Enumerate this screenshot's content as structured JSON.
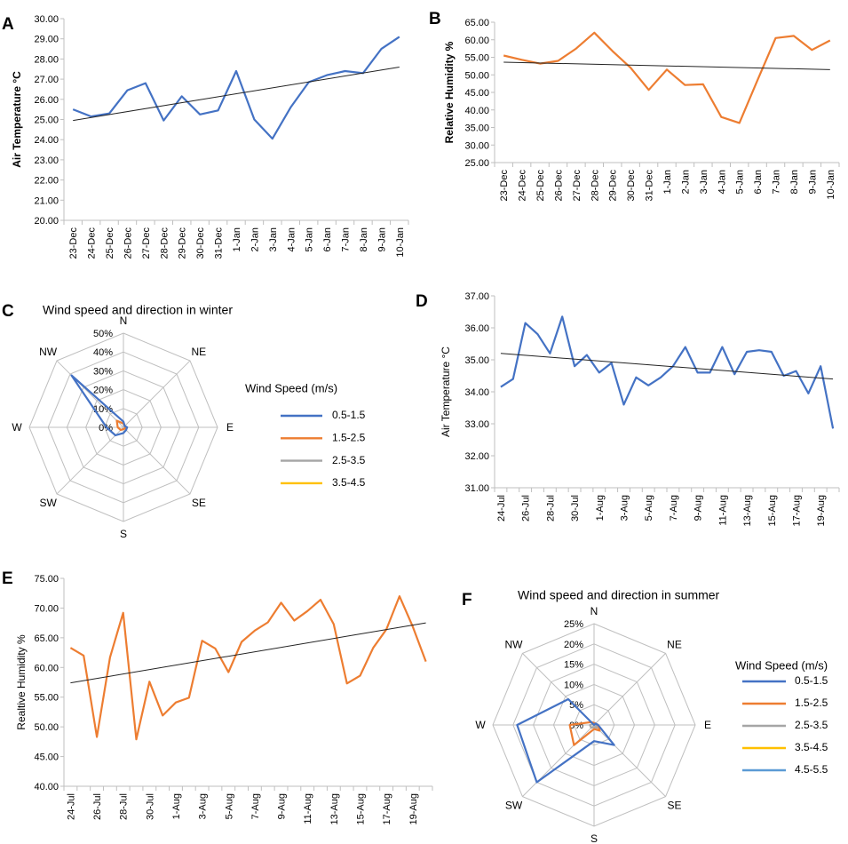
{
  "colors": {
    "blue": "#4472C4",
    "orange": "#ED7D31",
    "gray": "#A5A5A5",
    "yellow": "#FFC000",
    "lightblue": "#5B9BD5",
    "trend": "#222222",
    "grid": "#bfbfbf",
    "axis": "#bfbfbf"
  },
  "chart_data": [
    {
      "id": "A",
      "panel_label": "A",
      "type": "line",
      "ylabel": "Air Temperature °C",
      "ylim": [
        20,
        30
      ],
      "ytick_step": 1,
      "ytick_decimals": 2,
      "categories": [
        "23-Dec",
        "24-Dec",
        "25-Dec",
        "26-Dec",
        "27-Dec",
        "28-Dec",
        "29-Dec",
        "30-Dec",
        "31-Dec",
        "1-Jan",
        "2-Jan",
        "3-Jan",
        "4-Jan",
        "5-Jan",
        "6-Jan",
        "7-Jan",
        "8-Jan",
        "9-Jan",
        "10-Jan"
      ],
      "label_every": 1,
      "series": [
        {
          "name": "Air Temperature",
          "color": "blue",
          "values": [
            25.5,
            25.15,
            25.3,
            26.45,
            26.8,
            24.95,
            26.15,
            25.25,
            25.45,
            27.4,
            25.0,
            24.05,
            25.6,
            26.85,
            27.2,
            27.4,
            27.3,
            28.5,
            29.1
          ]
        }
      ],
      "trend": [
        24.95,
        27.6
      ]
    },
    {
      "id": "B",
      "panel_label": "B",
      "type": "line",
      "ylabel": "Relative Humidity %",
      "ylim": [
        25,
        65
      ],
      "ytick_step": 5,
      "ytick_decimals": 2,
      "categories": [
        "23-Dec",
        "24-Dec",
        "25-Dec",
        "26-Dec",
        "27-Dec",
        "28-Dec",
        "29-Dec",
        "30-Dec",
        "31-Dec",
        "1-Jan",
        "2-Jan",
        "3-Jan",
        "4-Jan",
        "5-Jan",
        "6-Jan",
        "7-Jan",
        "8-Jan",
        "9-Jan",
        "10-Jan"
      ],
      "label_every": 1,
      "series": [
        {
          "name": "Relative Humidity",
          "color": "orange",
          "values": [
            55.5,
            54.3,
            53.2,
            54.0,
            57.5,
            62.0,
            56.8,
            52.0,
            45.7,
            51.5,
            47.1,
            47.3,
            38.0,
            36.3,
            48.5,
            60.5,
            61.1,
            57.1,
            59.8
          ]
        }
      ],
      "trend": [
        53.6,
        51.5
      ]
    },
    {
      "id": "C",
      "panel_label": "C",
      "type": "radar",
      "title": "Wind speed and direction in winter",
      "directions": [
        "N",
        "NE",
        "E",
        "SE",
        "S",
        "SW",
        "W",
        "NW"
      ],
      "rmax": 50,
      "rstep": 10,
      "legend_title": "Wind Speed (m/s)",
      "series": [
        {
          "name": "0.5-1.5",
          "color": "blue",
          "values": [
            3,
            1,
            2,
            2,
            3,
            6,
            9,
            39
          ]
        },
        {
          "name": "1.5-2.5",
          "color": "orange",
          "values": [
            2,
            1,
            1,
            1,
            1,
            2,
            3,
            5
          ]
        },
        {
          "name": "2.5-3.5",
          "color": "gray",
          "values": [
            0,
            0,
            0,
            0,
            0,
            0,
            0,
            0
          ]
        },
        {
          "name": "3.5-4.5",
          "color": "yellow",
          "values": [
            0,
            0,
            0,
            0,
            0,
            0,
            0,
            0
          ]
        }
      ]
    },
    {
      "id": "D",
      "panel_label": "D",
      "type": "line",
      "ylabel": "Air Temperature °C",
      "ylim": [
        31,
        37
      ],
      "ytick_step": 1,
      "ytick_decimals": 2,
      "categories": [
        "24-Jul",
        "25-Jul",
        "26-Jul",
        "27-Jul",
        "28-Jul",
        "29-Jul",
        "30-Jul",
        "31-Jul",
        "1-Aug",
        "2-Aug",
        "3-Aug",
        "4-Aug",
        "5-Aug",
        "6-Aug",
        "7-Aug",
        "8-Aug",
        "9-Aug",
        "10-Aug",
        "11-Aug",
        "12-Aug",
        "13-Aug",
        "14-Aug",
        "15-Aug",
        "16-Aug",
        "17-Aug",
        "18-Aug",
        "19-Aug",
        "20-Aug"
      ],
      "label_every": 2,
      "series": [
        {
          "name": "Air Temperature",
          "color": "blue",
          "values": [
            34.15,
            34.4,
            36.15,
            35.8,
            35.2,
            36.35,
            34.8,
            35.15,
            34.6,
            34.9,
            33.6,
            34.45,
            34.2,
            34.45,
            34.8,
            35.4,
            34.6,
            34.6,
            35.4,
            34.55,
            35.25,
            35.3,
            35.25,
            34.5,
            34.65,
            33.95,
            34.8,
            32.85
          ]
        }
      ],
      "trend": [
        35.2,
        34.4
      ]
    },
    {
      "id": "E",
      "panel_label": "E",
      "type": "line",
      "ylabel": "Realtive Humidity %",
      "ylim": [
        40,
        75
      ],
      "ytick_step": 5,
      "ytick_decimals": 2,
      "categories": [
        "24-Jul",
        "25-Jul",
        "26-Jul",
        "27-Jul",
        "28-Jul",
        "29-Jul",
        "30-Jul",
        "31-Jul",
        "1-Aug",
        "2-Aug",
        "3-Aug",
        "4-Aug",
        "5-Aug",
        "6-Aug",
        "7-Aug",
        "8-Aug",
        "9-Aug",
        "10-Aug",
        "11-Aug",
        "12-Aug",
        "13-Aug",
        "14-Aug",
        "15-Aug",
        "16-Aug",
        "17-Aug",
        "18-Aug",
        "19-Aug",
        "20-Aug"
      ],
      "label_every": 2,
      "series": [
        {
          "name": "Relative Humidity",
          "color": "orange",
          "values": [
            63.3,
            62.0,
            48.3,
            61.7,
            69.2,
            47.9,
            57.6,
            51.9,
            54.1,
            54.9,
            64.5,
            63.2,
            59.2,
            64.3,
            66.2,
            67.6,
            70.9,
            67.9,
            69.5,
            71.4,
            67.3,
            57.3,
            58.6,
            63.3,
            66.4,
            72.0,
            66.9,
            61.0
          ]
        }
      ],
      "trend": [
        57.4,
        67.5
      ]
    },
    {
      "id": "F",
      "panel_label": "F",
      "type": "radar",
      "title": "Wind speed and direction in summer",
      "directions": [
        "N",
        "NE",
        "E",
        "SE",
        "S",
        "SW",
        "W",
        "NW"
      ],
      "rmax": 25,
      "rstep": 5,
      "legend_title": "Wind Speed (m/s)",
      "series": [
        {
          "name": "0.5-1.5",
          "color": "blue",
          "values": [
            0,
            0.5,
            1,
            7,
            4,
            20,
            19,
            9
          ]
        },
        {
          "name": "1.5-2.5",
          "color": "orange",
          "values": [
            0.5,
            0.5,
            1,
            2,
            1,
            7,
            6,
            1
          ]
        },
        {
          "name": "2.5-3.5",
          "color": "gray",
          "values": [
            0.3,
            0.3,
            0.5,
            1,
            0.5,
            1,
            1,
            0.3
          ]
        },
        {
          "name": "3.5-4.5",
          "color": "yellow",
          "values": [
            0,
            0,
            0,
            0,
            0,
            0,
            0,
            0
          ]
        },
        {
          "name": "4.5-5.5",
          "color": "lightblue",
          "values": [
            0,
            0,
            0,
            0,
            0,
            0,
            0,
            0
          ]
        }
      ]
    }
  ]
}
